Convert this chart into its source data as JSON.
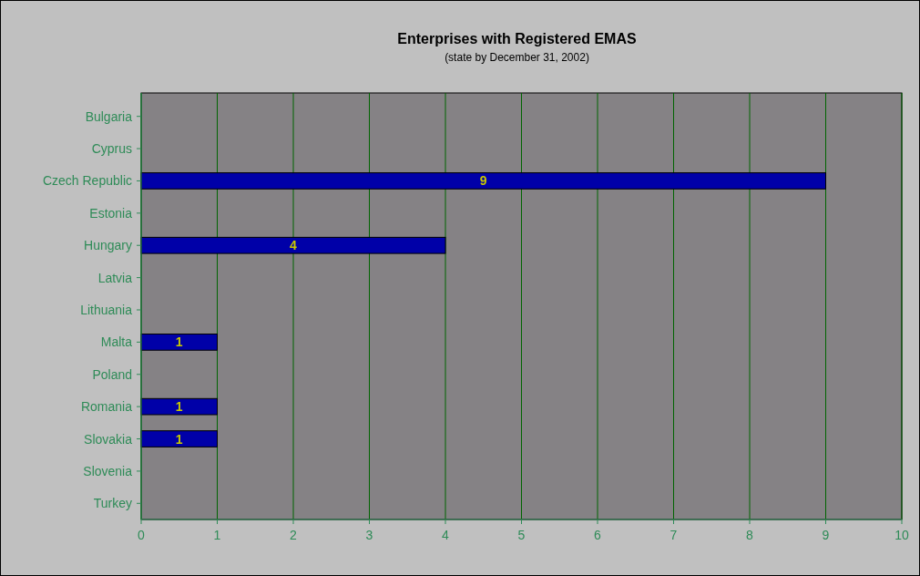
{
  "chart_data": {
    "type": "bar",
    "orientation": "horizontal",
    "title": "Enterprises with Registered EMAS",
    "subtitle": "(state by December 31, 2002)",
    "categories": [
      "Bulgaria",
      "Cyprus",
      "Czech Republic",
      "Estonia",
      "Hungary",
      "Latvia",
      "Lithuania",
      "Malta",
      "Poland",
      "Romania",
      "Slovakia",
      "Slovenia",
      "Turkey"
    ],
    "values": [
      0,
      0,
      9,
      0,
      4,
      0,
      0,
      1,
      0,
      1,
      1,
      0,
      0
    ],
    "value_labels": [
      null,
      null,
      "9",
      null,
      "4",
      null,
      null,
      "1",
      null,
      "1",
      "1",
      null,
      null
    ],
    "color": "#0000a8",
    "xlim": [
      0,
      10
    ],
    "xticks": [
      0,
      1,
      2,
      3,
      4,
      5,
      6,
      7,
      8,
      9,
      10
    ],
    "grid": "x"
  }
}
